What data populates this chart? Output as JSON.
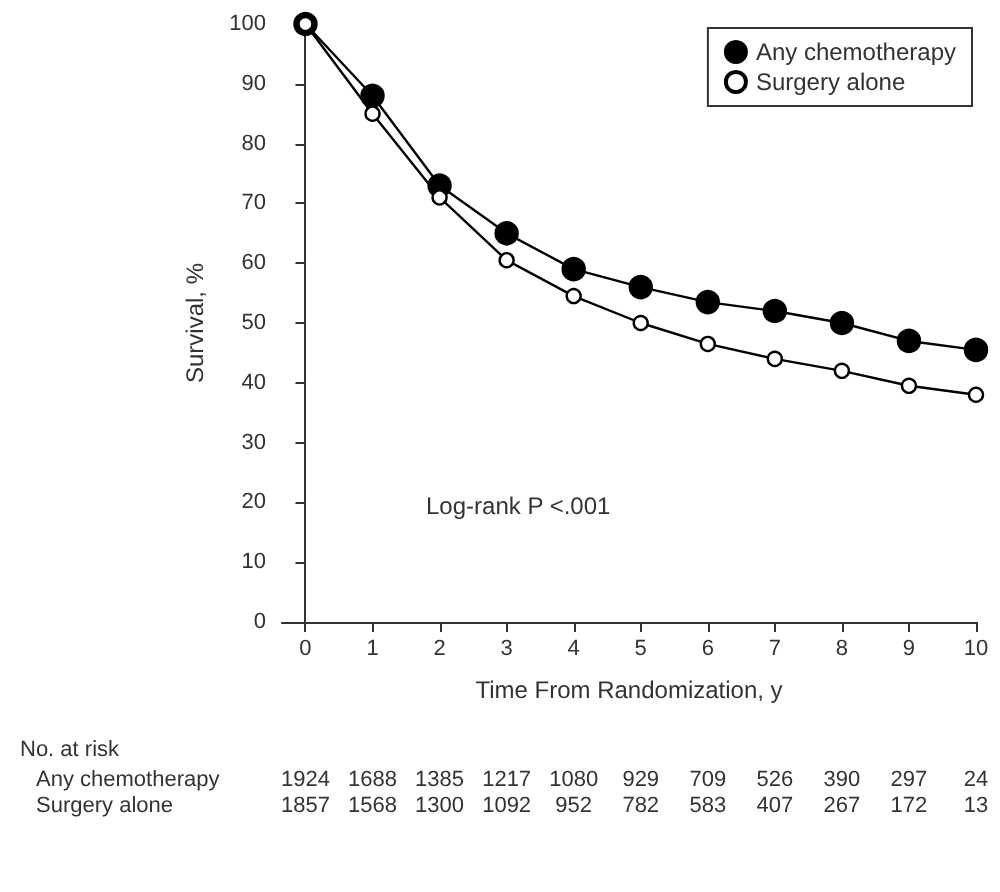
{
  "chart_data": {
    "type": "line",
    "xlabel": "Time From Randomization, y",
    "ylabel": "Survival, %",
    "x": [
      0,
      1,
      2,
      3,
      4,
      5,
      6,
      7,
      8,
      9,
      10
    ],
    "series": [
      {
        "name": "Any chemotherapy",
        "color": "#000000",
        "values": [
          100,
          88,
          73,
          65,
          59,
          56,
          53.5,
          52,
          50,
          47,
          45.5
        ]
      },
      {
        "name": "Surgery alone",
        "color": "#000000",
        "values": [
          100,
          85,
          71,
          60.5,
          54.5,
          50,
          46.5,
          44,
          42,
          39.5,
          38
        ]
      }
    ],
    "xlim": [
      -0.35,
      10
    ],
    "xticks": [
      0,
      1,
      2,
      3,
      4,
      5,
      6,
      7,
      8,
      9,
      10
    ],
    "ylim": [
      0,
      100
    ],
    "yticks": [
      0,
      10,
      20,
      30,
      40,
      50,
      60,
      70,
      80,
      90,
      100
    ],
    "grid": false,
    "legend": "top right",
    "marker": "circle",
    "line_style": "solid",
    "annotations": [
      "Log-rank P <.001",
      "No. at risk",
      "Any chemotherapy",
      "1924 1688 1385 1217 1080 929 709 526 390 297 24",
      "Surgery alone",
      "1857 1568 1300 1092 952 782 583 407 267 172 13"
    ]
  }
}
